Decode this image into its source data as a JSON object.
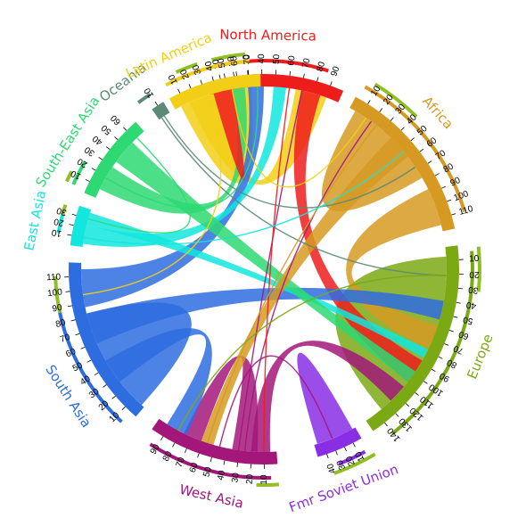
{
  "regions": [
    {
      "id": "north_america",
      "name": "North America",
      "color": "#ef1c1c",
      "ticks": [
        "10",
        "20",
        "30",
        "40",
        "50",
        "60",
        "70",
        "80",
        "90"
      ]
    },
    {
      "id": "africa",
      "name": "Africa",
      "color": "#d69a22",
      "ticks": [
        "10",
        "20",
        "30",
        "40",
        "50",
        "60",
        "70",
        "80",
        "90",
        "100",
        "110"
      ]
    },
    {
      "id": "europe",
      "name": "Europe",
      "color": "#7ba914",
      "ticks": [
        "10",
        "20",
        "30",
        "40",
        "50",
        "60",
        "70",
        "80",
        "90",
        "100",
        "110",
        "120",
        "130",
        "140"
      ]
    },
    {
      "id": "fsu",
      "name": "Fmr Soviet Union",
      "color": "#8a2ee6",
      "ticks": [
        "10",
        "20",
        "30",
        "40"
      ]
    },
    {
      "id": "west_asia",
      "name": "West Asia",
      "color": "#a3177a",
      "ticks": [
        "10",
        "20",
        "30",
        "40",
        "50",
        "60",
        "70",
        "80",
        "90"
      ]
    },
    {
      "id": "south_asia",
      "name": "South Asia",
      "color": "#2e6de0",
      "ticks": [
        "10",
        "20",
        "30",
        "40",
        "50",
        "60",
        "70",
        "80",
        "90",
        "100",
        "110"
      ]
    },
    {
      "id": "east_asia",
      "name": "East Asia",
      "color": "#12e6de",
      "ticks": [
        "10",
        "20",
        "30"
      ]
    },
    {
      "id": "se_asia",
      "name": "South-East Asia",
      "color": "#2ed973",
      "ticks": [
        "10",
        "20",
        "30",
        "40",
        "50",
        "60"
      ]
    },
    {
      "id": "oceania",
      "name": "Oceania",
      "color": "#5b8a76",
      "ticks": [
        "10"
      ]
    },
    {
      "id": "latin_america",
      "name": "Latin America",
      "color": "#f2cf16",
      "ticks": [
        "10",
        "20",
        "30",
        "40",
        "50",
        "60",
        "70"
      ]
    }
  ]
}
